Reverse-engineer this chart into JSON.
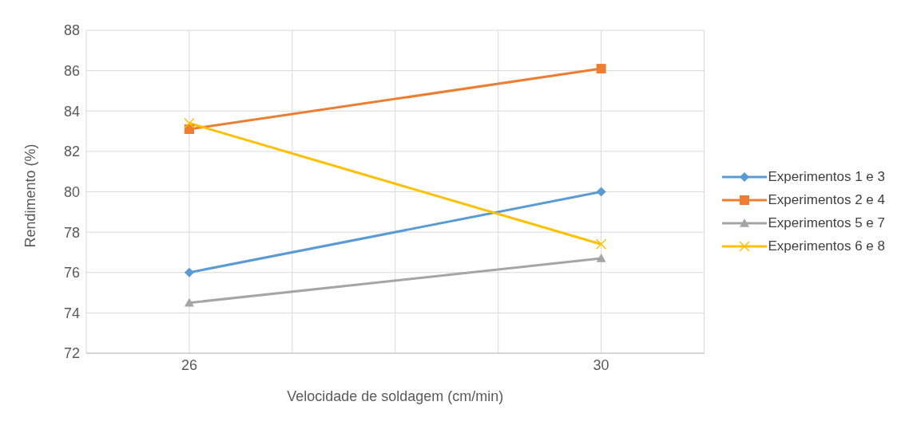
{
  "chart_data": {
    "type": "line",
    "xlabel": "Velocidade de soldagem (cm/min)",
    "ylabel": "Rendimento (%)",
    "x": [
      26,
      30
    ],
    "xlim": [
      25,
      31
    ],
    "xticks": [
      {
        "value": 25,
        "label": null
      },
      26,
      {
        "value": 27,
        "label": null
      },
      {
        "value": 28,
        "label": null
      },
      {
        "value": 29,
        "label": null
      },
      30,
      {
        "value": 31,
        "label": null
      }
    ],
    "ylim": [
      72,
      88
    ],
    "yticks": [
      72,
      74,
      76,
      78,
      80,
      82,
      84,
      86,
      88
    ],
    "grid": true,
    "legend": "right",
    "series": [
      {
        "name": "Experimentos 1 e 3",
        "color": "#5b9bd5",
        "marker": "diamond",
        "values": [
          76,
          80
        ]
      },
      {
        "name": "Experimentos 2 e 4",
        "color": "#ed7d31",
        "marker": "square",
        "values": [
          83.1,
          86.1
        ]
      },
      {
        "name": "Experimentos 5 e 7",
        "color": "#a5a5a5",
        "marker": "triangle",
        "values": [
          74.5,
          76.7
        ]
      },
      {
        "name": "Experimentos 6 e 8",
        "color": "#ffc000",
        "marker": "cross",
        "values": [
          83.4,
          77.4
        ]
      }
    ]
  }
}
